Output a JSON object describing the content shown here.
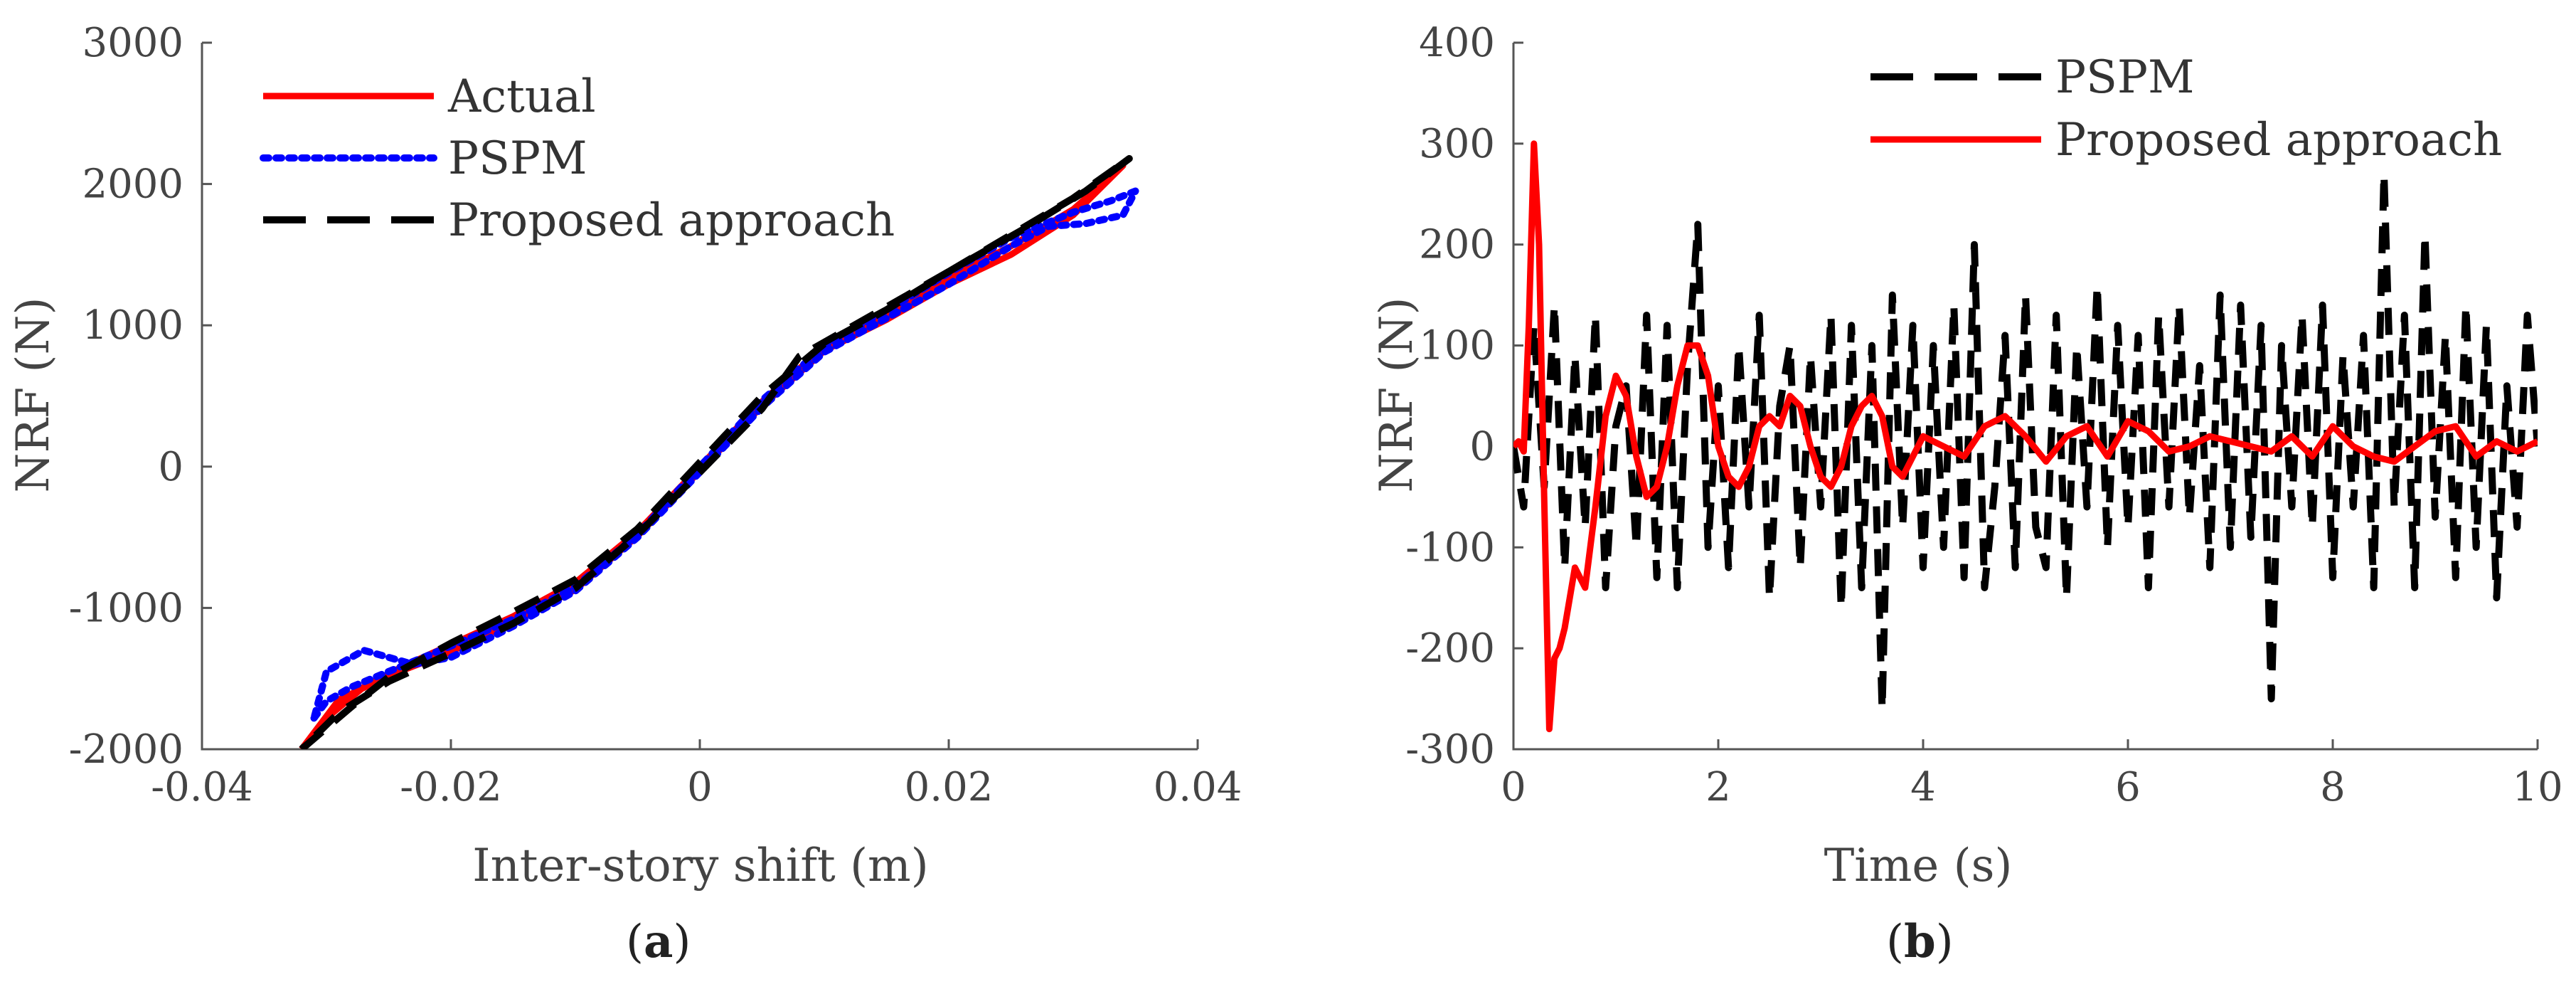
{
  "chart_data": [
    {
      "type": "line",
      "panel_label": "a",
      "xlabel": "Inter-story shift (m)",
      "ylabel": "NRF (N)",
      "xlim": [
        -0.04,
        0.04
      ],
      "ylim": [
        -2000,
        3000
      ],
      "xticks": [
        "-0.04",
        "-0.02",
        "0",
        "0.02",
        "0.04"
      ],
      "yticks": [
        "-2000",
        "-1000",
        "0",
        "1000",
        "2000",
        "3000"
      ],
      "legend": {
        "position": "top-left",
        "entries": [
          "Actual",
          "PSPM",
          "Proposed approach"
        ]
      },
      "series": [
        {
          "name": "Actual",
          "color": "#ff0000",
          "style": "solid",
          "points": [
            [
              -0.032,
              -2000
            ],
            [
              -0.03,
              -1780
            ],
            [
              -0.027,
              -1560
            ],
            [
              -0.024,
              -1420
            ],
            [
              -0.02,
              -1260
            ],
            [
              -0.015,
              -1060
            ],
            [
              -0.01,
              -820
            ],
            [
              -0.005,
              -460
            ],
            [
              0,
              0
            ],
            [
              0.005,
              460
            ],
            [
              0.01,
              850
            ],
            [
              0.015,
              1080
            ],
            [
              0.02,
              1340
            ],
            [
              0.025,
              1560
            ],
            [
              0.03,
              1820
            ],
            [
              0.034,
              2130
            ],
            [
              0.03,
              1780
            ],
            [
              0.025,
              1500
            ],
            [
              0.02,
              1290
            ],
            [
              0.015,
              1040
            ],
            [
              0.01,
              820
            ],
            [
              0.005,
              430
            ],
            [
              0,
              -30
            ],
            [
              -0.005,
              -490
            ],
            [
              -0.01,
              -870
            ],
            [
              -0.015,
              -1100
            ],
            [
              -0.02,
              -1310
            ],
            [
              -0.025,
              -1480
            ],
            [
              -0.029,
              -1650
            ],
            [
              -0.032,
              -2000
            ]
          ]
        },
        {
          "name": "PSPM",
          "color": "#0000ff",
          "style": "dotted",
          "points": [
            [
              -0.031,
              -1780
            ],
            [
              -0.03,
              -1660
            ],
            [
              -0.028,
              -1560
            ],
            [
              -0.025,
              -1450
            ],
            [
              -0.02,
              -1270
            ],
            [
              -0.015,
              -1080
            ],
            [
              -0.01,
              -850
            ],
            [
              -0.005,
              -480
            ],
            [
              0,
              0
            ],
            [
              0.005,
              470
            ],
            [
              0.01,
              850
            ],
            [
              0.015,
              1100
            ],
            [
              0.02,
              1370
            ],
            [
              0.025,
              1620
            ],
            [
              0.03,
              1800
            ],
            [
              0.033,
              1880
            ],
            [
              0.035,
              1950
            ],
            [
              0.034,
              1780
            ],
            [
              0.031,
              1720
            ],
            [
              0.028,
              1700
            ],
            [
              0.025,
              1560
            ],
            [
              0.02,
              1290
            ],
            [
              0.015,
              1050
            ],
            [
              0.01,
              810
            ],
            [
              0.005,
              420
            ],
            [
              0,
              -40
            ],
            [
              -0.005,
              -500
            ],
            [
              -0.01,
              -880
            ],
            [
              -0.015,
              -1130
            ],
            [
              -0.02,
              -1350
            ],
            [
              -0.023,
              -1400
            ],
            [
              -0.027,
              -1300
            ],
            [
              -0.03,
              -1450
            ],
            [
              -0.031,
              -1780
            ]
          ]
        },
        {
          "name": "Proposed approach",
          "color": "#000000",
          "style": "dashed",
          "points": [
            [
              -0.032,
              -2000
            ],
            [
              -0.028,
              -1700
            ],
            [
              -0.025,
              -1490
            ],
            [
              -0.02,
              -1250
            ],
            [
              -0.015,
              -1030
            ],
            [
              -0.01,
              -800
            ],
            [
              -0.005,
              -440
            ],
            [
              0,
              30
            ],
            [
              0.005,
              500
            ],
            [
              0.01,
              870
            ],
            [
              0.015,
              1110
            ],
            [
              0.02,
              1380
            ],
            [
              0.025,
              1640
            ],
            [
              0.03,
              1900
            ],
            [
              0.0345,
              2180
            ],
            [
              0.031,
              1950
            ],
            [
              0.026,
              1680
            ],
            [
              0.021,
              1430
            ],
            [
              0.016,
              1180
            ],
            [
              0.011,
              930
            ],
            [
              0.008,
              780
            ],
            [
              0.005,
              410
            ],
            [
              0,
              -40
            ],
            [
              -0.005,
              -480
            ],
            [
              -0.01,
              -860
            ],
            [
              -0.015,
              -1110
            ],
            [
              -0.02,
              -1320
            ],
            [
              -0.025,
              -1520
            ],
            [
              -0.029,
              -1740
            ],
            [
              -0.032,
              -2000
            ]
          ]
        }
      ]
    },
    {
      "type": "line",
      "panel_label": "b",
      "xlabel": "Time (s)",
      "ylabel": "NRF (N)",
      "xlim": [
        0,
        10
      ],
      "ylim": [
        -300,
        400
      ],
      "xticks": [
        "0",
        "2",
        "4",
        "6",
        "8",
        "10"
      ],
      "yticks": [
        "-300",
        "-200",
        "-100",
        "0",
        "100",
        "200",
        "300",
        "400"
      ],
      "legend": {
        "position": "top-right",
        "entries": [
          "PSPM",
          "Proposed approach"
        ]
      },
      "series": [
        {
          "name": "PSPM",
          "color": "#000000",
          "style": "dashed",
          "x": [
            0,
            0.1,
            0.2,
            0.3,
            0.4,
            0.5,
            0.6,
            0.7,
            0.8,
            0.9,
            1,
            1.1,
            1.2,
            1.3,
            1.4,
            1.5,
            1.6,
            1.7,
            1.8,
            1.9,
            2,
            2.1,
            2.2,
            2.3,
            2.4,
            2.5,
            2.6,
            2.7,
            2.8,
            2.9,
            3,
            3.1,
            3.2,
            3.3,
            3.4,
            3.5,
            3.6,
            3.7,
            3.8,
            3.9,
            4,
            4.1,
            4.2,
            4.3,
            4.4,
            4.5,
            4.6,
            4.7,
            4.8,
            4.9,
            5,
            5.1,
            5.2,
            5.3,
            5.4,
            5.5,
            5.6,
            5.7,
            5.8,
            5.9,
            6,
            6.1,
            6.2,
            6.3,
            6.4,
            6.5,
            6.6,
            6.7,
            6.8,
            6.9,
            7,
            7.1,
            7.2,
            7.3,
            7.4,
            7.5,
            7.6,
            7.7,
            7.8,
            7.9,
            8,
            8.1,
            8.2,
            8.3,
            8.4,
            8.5,
            8.6,
            8.7,
            8.8,
            8.9,
            9,
            9.1,
            9.2,
            9.3,
            9.4,
            9.5,
            9.6,
            9.7,
            9.8,
            9.9,
            10
          ],
          "values": [
            0,
            -60,
            120,
            -40,
            140,
            -120,
            90,
            -80,
            130,
            -140,
            20,
            60,
            -100,
            130,
            -130,
            120,
            -140,
            80,
            220,
            -100,
            60,
            -120,
            100,
            -60,
            130,
            -150,
            40,
            100,
            -120,
            90,
            -60,
            130,
            -160,
            120,
            -140,
            100,
            -260,
            150,
            -80,
            120,
            -120,
            100,
            -100,
            140,
            -130,
            200,
            -140,
            -40,
            110,
            -120,
            150,
            -80,
            -120,
            130,
            -150,
            100,
            -60,
            160,
            -100,
            120,
            -80,
            110,
            -140,
            130,
            -60,
            140,
            -70,
            80,
            -120,
            150,
            -100,
            140,
            -90,
            120,
            -250,
            100,
            -60,
            130,
            -80,
            140,
            -130,
            90,
            -60,
            110,
            -140,
            270,
            -60,
            130,
            -140,
            210,
            -70,
            110,
            -130,
            140,
            -100,
            120,
            -150,
            60,
            -80,
            130,
            0
          ]
        },
        {
          "name": "Proposed approach",
          "color": "#ff0000",
          "style": "solid",
          "x": [
            0,
            0.05,
            0.1,
            0.15,
            0.2,
            0.25,
            0.3,
            0.35,
            0.4,
            0.45,
            0.5,
            0.55,
            0.6,
            0.7,
            0.8,
            0.9,
            1,
            1.1,
            1.2,
            1.3,
            1.4,
            1.5,
            1.6,
            1.7,
            1.8,
            1.9,
            2,
            2.1,
            2.2,
            2.3,
            2.4,
            2.5,
            2.6,
            2.7,
            2.8,
            2.9,
            3,
            3.1,
            3.2,
            3.3,
            3.4,
            3.5,
            3.6,
            3.7,
            3.8,
            3.9,
            4,
            4.2,
            4.4,
            4.6,
            4.8,
            5,
            5.2,
            5.4,
            5.6,
            5.8,
            6,
            6.2,
            6.4,
            6.6,
            6.8,
            7,
            7.2,
            7.4,
            7.6,
            7.8,
            8,
            8.2,
            8.4,
            8.6,
            8.8,
            9,
            9.2,
            9.4,
            9.6,
            9.8,
            10
          ],
          "values": [
            0,
            5,
            -5,
            120,
            300,
            200,
            -50,
            -280,
            -210,
            -200,
            -180,
            -150,
            -120,
            -140,
            -60,
            30,
            70,
            50,
            -10,
            -50,
            -40,
            0,
            60,
            100,
            100,
            70,
            0,
            -30,
            -40,
            -20,
            20,
            30,
            20,
            50,
            40,
            0,
            -30,
            -40,
            -20,
            20,
            40,
            50,
            30,
            -20,
            -30,
            -10,
            10,
            0,
            -10,
            20,
            30,
            10,
            -15,
            10,
            20,
            -10,
            25,
            15,
            -5,
            0,
            10,
            5,
            0,
            -5,
            10,
            -10,
            20,
            0,
            -10,
            -15,
            0,
            15,
            20,
            -10,
            5,
            -5,
            5
          ]
        }
      ]
    }
  ]
}
